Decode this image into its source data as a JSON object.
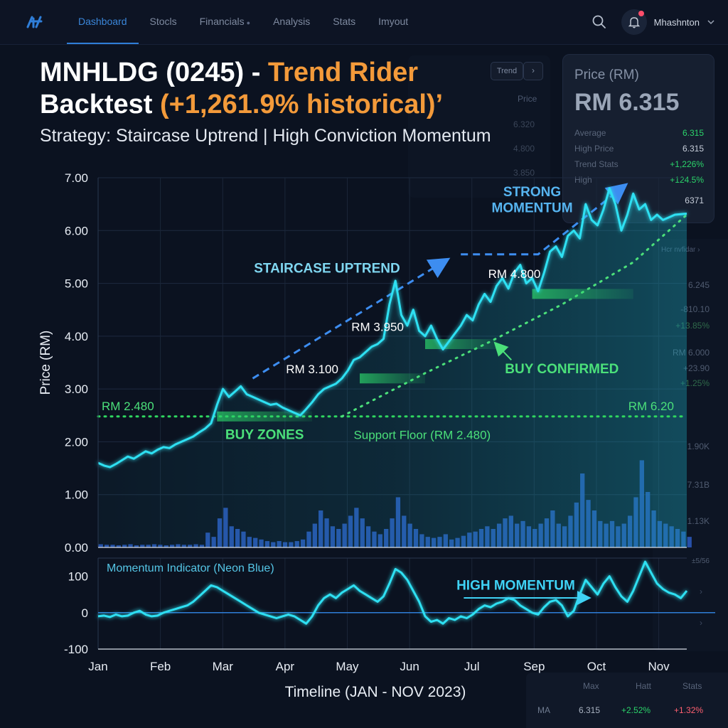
{
  "nav": {
    "items": [
      "Dashboard",
      "Stocls",
      "Financials",
      "Analysis",
      "Stats",
      "Imyout"
    ],
    "active": "Dashboard",
    "user": "Mhashnton"
  },
  "headline": {
    "title_part1": "MNHLDG (0245) - ",
    "title_part2": "Trend Rider",
    "title_part3": " Backtest ",
    "title_part4": "(+1,261.9% historical)’",
    "subtitle": "Strategy: Staircase Uptrend | High Conviction Momentum"
  },
  "price_panel": {
    "title": "Price (RM)",
    "value": "RM 6.315",
    "rows": [
      {
        "label": "Average",
        "value": "6.315"
      },
      {
        "label": "High Price",
        "value": "6.315"
      },
      {
        "label": "Trend Stats",
        "value": "+1,226%"
      },
      {
        "label": "High",
        "value": "+124.5%"
      },
      {
        "label": "",
        "value": "6371"
      }
    ]
  },
  "mid_panel": {
    "chip": "Trend",
    "button": "›",
    "header": "Price",
    "values": [
      "6.320",
      "4.800",
      "3.850"
    ]
  },
  "right_panel": {
    "chip": "Hcr nvfidar",
    "chip_icon": "›",
    "values": [
      "6.245",
      "-810.10",
      "+13.85%",
      "RM 6.000",
      "+23.90",
      "+1.25%",
      "1.90K",
      "7.31B",
      "1.13K",
      "±5/56"
    ],
    "arrows": [
      "›",
      "›"
    ]
  },
  "bottom_panel": {
    "headers": [
      "Max",
      "Hatt",
      "Stats"
    ],
    "row_label": "MA",
    "row_values": [
      "6.315",
      "+2.52%",
      "+1.32%"
    ]
  },
  "chart_data": [
    {
      "type": "line",
      "title": "",
      "ylabel": "Price (RM)",
      "xlabel": "Timeline (JAN - NOV 2023)",
      "ylim": [
        0,
        7
      ],
      "yticks": [
        "0.00",
        "1.00",
        "2.00",
        "3.00",
        "4.00",
        "5.00",
        "6.00",
        "7.00"
      ],
      "xticks": [
        "Jan",
        "Feb",
        "Mar",
        "Apr",
        "May",
        "Jun",
        "Jul",
        "Sep",
        "Oct",
        "Nov"
      ],
      "grid": true,
      "x": [
        0,
        0.1,
        0.2,
        0.3,
        0.4,
        0.5,
        0.6,
        0.7,
        0.8,
        0.9,
        1.0,
        1.1,
        1.2,
        1.3,
        1.4,
        1.5,
        1.6,
        1.7,
        1.8,
        1.9,
        2.0,
        2.1,
        2.2,
        2.3,
        2.4,
        2.5,
        2.6,
        2.7,
        2.8,
        2.9,
        3.0,
        3.1,
        3.2,
        3.3,
        3.4,
        3.5,
        3.6,
        3.7,
        3.8,
        3.9,
        4.0,
        4.1,
        4.2,
        4.3,
        4.4,
        4.5,
        4.6,
        4.7,
        4.8,
        4.9,
        5.0,
        5.1,
        5.2,
        5.3,
        5.4,
        5.5,
        5.6,
        5.7,
        5.8,
        5.9,
        6.0,
        6.1,
        6.2,
        6.3,
        6.4,
        6.5,
        6.6,
        6.7,
        6.8,
        6.9,
        7.0,
        7.1,
        7.2,
        7.3,
        7.4,
        7.5,
        7.6,
        7.7,
        7.8,
        7.9,
        8.0,
        8.1,
        8.2,
        8.3,
        8.4,
        8.5,
        8.6,
        8.7,
        8.8,
        8.9,
        9.0,
        9.1,
        9.2,
        9.3,
        9.4,
        9.5,
        9.6,
        9.7,
        9.8,
        9.9
      ],
      "series": [
        {
          "values": [
            1.6,
            1.55,
            1.52,
            1.58,
            1.65,
            1.72,
            1.68,
            1.75,
            1.82,
            1.78,
            1.85,
            1.9,
            1.88,
            1.95,
            2.0,
            2.05,
            2.1,
            2.18,
            2.25,
            2.35,
            2.7,
            3.0,
            2.85,
            2.95,
            3.05,
            2.9,
            2.85,
            2.8,
            2.75,
            2.7,
            2.72,
            2.65,
            2.6,
            2.55,
            2.5,
            2.62,
            2.75,
            2.9,
            3.0,
            3.05,
            3.1,
            3.2,
            3.35,
            3.55,
            3.6,
            3.7,
            3.8,
            3.85,
            3.95,
            4.6,
            5.05,
            4.4,
            4.2,
            4.5,
            4.1,
            4.0,
            4.2,
            3.95,
            3.75,
            3.9,
            4.05,
            4.2,
            4.4,
            4.3,
            4.6,
            4.8,
            4.65,
            4.95,
            5.1,
            4.9,
            5.2,
            5.35,
            5.0,
            5.1,
            4.85,
            5.2,
            5.6,
            5.7,
            5.5,
            5.9,
            6.0,
            5.85,
            6.5,
            6.2,
            6.1,
            6.4,
            6.8,
            6.5,
            6.0,
            6.3,
            6.7,
            6.4,
            6.5,
            6.2,
            6.3,
            6.2,
            6.25,
            6.3,
            6.31,
            6.32
          ]
        }
      ],
      "volume": [
        0.06,
        0.05,
        0.05,
        0.04,
        0.05,
        0.06,
        0.04,
        0.05,
        0.05,
        0.06,
        0.05,
        0.04,
        0.05,
        0.06,
        0.05,
        0.05,
        0.06,
        0.05,
        0.28,
        0.2,
        0.55,
        0.75,
        0.4,
        0.35,
        0.3,
        0.2,
        0.18,
        0.15,
        0.12,
        0.1,
        0.12,
        0.1,
        0.1,
        0.12,
        0.15,
        0.3,
        0.45,
        0.7,
        0.55,
        0.4,
        0.35,
        0.45,
        0.6,
        0.75,
        0.55,
        0.4,
        0.3,
        0.25,
        0.35,
        0.55,
        0.95,
        0.6,
        0.45,
        0.35,
        0.25,
        0.2,
        0.18,
        0.2,
        0.25,
        0.15,
        0.18,
        0.22,
        0.28,
        0.3,
        0.35,
        0.4,
        0.35,
        0.45,
        0.55,
        0.6,
        0.45,
        0.5,
        0.4,
        0.35,
        0.45,
        0.55,
        0.7,
        0.45,
        0.4,
        0.6,
        0.85,
        1.4,
        0.9,
        0.7,
        0.5,
        0.45,
        0.5,
        0.4,
        0.45,
        0.6,
        0.95,
        1.65,
        1.05,
        0.7,
        0.5,
        0.45,
        0.4,
        0.35,
        0.3,
        0.2
      ],
      "volume_labels": [
        "1.90K",
        "7.31B",
        "1.13K"
      ],
      "support_level": 2.48,
      "trend_line": [
        [
          4.1,
          2.48
        ],
        [
          5.5,
          3.3
        ],
        [
          6.6,
          3.9
        ],
        [
          7.8,
          4.6
        ],
        [
          9.0,
          5.4
        ],
        [
          9.9,
          6.3
        ]
      ],
      "dashed_arrows": [
        [
          [
            2.6,
            3.2
          ],
          [
            5.8,
            5.4
          ]
        ],
        [
          [
            6.1,
            5.55
          ],
          [
            7.4,
            5.55
          ],
          [
            8.8,
            6.8
          ]
        ]
      ],
      "buy_zones": [
        {
          "x0": 2.0,
          "x1": 3.6,
          "y": 2.48
        },
        {
          "x0": 4.4,
          "x1": 5.5,
          "y": 3.2
        },
        {
          "x0": 5.5,
          "x1": 6.7,
          "y": 3.85
        },
        {
          "x0": 7.3,
          "x1": 9.0,
          "y": 4.8
        }
      ],
      "annotations": [
        {
          "text": "STAIRCASE UPTREND",
          "x": 3.85,
          "y": 5.2,
          "color": "#7fd6f0"
        },
        {
          "text": "STRONG",
          "x": 7.3,
          "y": 6.65,
          "color": "#56b4f0"
        },
        {
          "text": "MOMENTUM",
          "x": 7.3,
          "y": 6.35,
          "color": "#56b4f0"
        },
        {
          "text": "RM 3.950",
          "x": 4.7,
          "y": 4.1,
          "color": "#ffffff"
        },
        {
          "text": "RM 3.100",
          "x": 3.6,
          "y": 3.3,
          "color": "#ffffff"
        },
        {
          "text": "RM 4.800",
          "x": 7.0,
          "y": 5.1,
          "color": "#ffffff"
        },
        {
          "text": "BUY CONFIRMED",
          "x": 7.8,
          "y": 3.3,
          "color": "#4be07a"
        },
        {
          "text": "RM 2.480",
          "x": 0.5,
          "y": 2.6,
          "color": "#4be07a"
        },
        {
          "text": "RM 6.20",
          "x": 9.3,
          "y": 2.6,
          "color": "#4be07a"
        },
        {
          "text": "BUY ZONES",
          "x": 2.8,
          "y": 2.05,
          "color": "#4be07a"
        },
        {
          "text": "Support Floor (RM 2.480)",
          "x": 5.45,
          "y": 2.05,
          "color": "#4be07a"
        }
      ]
    },
    {
      "type": "line",
      "title": "Momentum Indicator (Neon Blue)",
      "ylim": [
        -100,
        150
      ],
      "yticks": [
        "100",
        "0",
        "-100"
      ],
      "ytick_values": [
        100,
        0,
        -100
      ],
      "x": [
        0,
        0.1,
        0.2,
        0.3,
        0.4,
        0.5,
        0.6,
        0.7,
        0.8,
        0.9,
        1.0,
        1.1,
        1.2,
        1.3,
        1.4,
        1.5,
        1.6,
        1.7,
        1.8,
        1.9,
        2.0,
        2.1,
        2.2,
        2.3,
        2.4,
        2.5,
        2.6,
        2.7,
        2.8,
        2.9,
        3.0,
        3.1,
        3.2,
        3.3,
        3.4,
        3.5,
        3.6,
        3.7,
        3.8,
        3.9,
        4.0,
        4.1,
        4.2,
        4.3,
        4.4,
        4.5,
        4.6,
        4.7,
        4.8,
        4.9,
        5.0,
        5.1,
        5.2,
        5.3,
        5.4,
        5.5,
        5.6,
        5.7,
        5.8,
        5.9,
        6.0,
        6.1,
        6.2,
        6.3,
        6.4,
        6.5,
        6.6,
        6.7,
        6.8,
        6.9,
        7.0,
        7.1,
        7.2,
        7.3,
        7.4,
        7.5,
        7.6,
        7.7,
        7.8,
        7.9,
        8.0,
        8.1,
        8.2,
        8.3,
        8.4,
        8.5,
        8.6,
        8.7,
        8.8,
        8.9,
        9.0,
        9.1,
        9.2,
        9.3,
        9.4,
        9.5,
        9.6,
        9.7,
        9.8,
        9.9
      ],
      "series": [
        {
          "values": [
            -10,
            -8,
            -12,
            -5,
            -10,
            -8,
            0,
            5,
            -5,
            -10,
            -8,
            0,
            5,
            10,
            15,
            20,
            30,
            45,
            60,
            75,
            70,
            60,
            50,
            40,
            30,
            20,
            10,
            0,
            -5,
            -10,
            -15,
            -10,
            -5,
            -10,
            -20,
            -30,
            -10,
            20,
            40,
            50,
            40,
            55,
            65,
            75,
            60,
            50,
            40,
            30,
            45,
            80,
            120,
            110,
            90,
            60,
            30,
            -10,
            -25,
            -20,
            -30,
            -15,
            -20,
            -10,
            -15,
            -5,
            10,
            20,
            15,
            25,
            30,
            40,
            35,
            20,
            10,
            0,
            -5,
            15,
            30,
            35,
            20,
            -10,
            5,
            50,
            90,
            70,
            50,
            80,
            100,
            70,
            45,
            30,
            60,
            100,
            140,
            110,
            80,
            65,
            55,
            50,
            40,
            60
          ]
        }
      ],
      "annotations": [
        {
          "text": "HIGH MOMENTUM",
          "x": 7.0,
          "y": 100,
          "color": "#3fd2f5"
        }
      ]
    }
  ]
}
